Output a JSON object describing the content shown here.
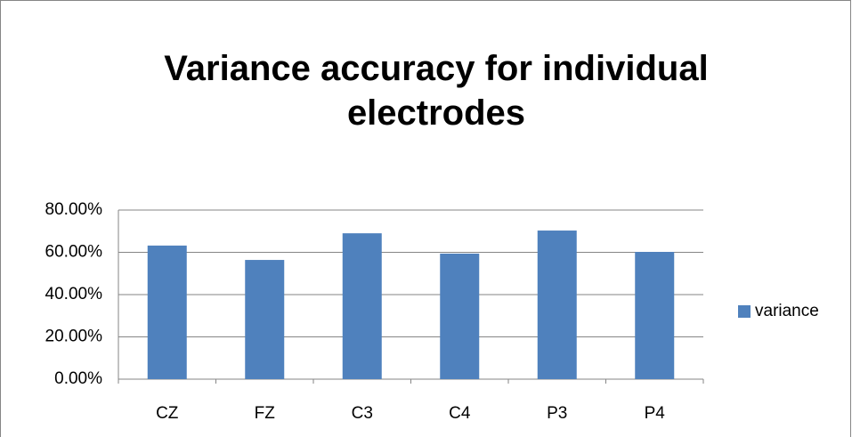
{
  "chart_data": {
    "type": "bar",
    "title": "Variance accuracy for individual electrodes",
    "categories": [
      "CZ",
      "FZ",
      "C3",
      "C4",
      "P3",
      "P4"
    ],
    "series": [
      {
        "name": "variance",
        "color": "#4f81bd",
        "values": [
          63.2,
          56.4,
          69.0,
          59.4,
          70.3,
          60.2
        ]
      }
    ],
    "ylim": [
      0,
      80
    ],
    "yticks": [
      {
        "value": 0,
        "label": "0.00%"
      },
      {
        "value": 20,
        "label": "20.00%"
      },
      {
        "value": 40,
        "label": "40.00%"
      },
      {
        "value": 60,
        "label": "60.00%"
      },
      {
        "value": 80,
        "label": "80.00%"
      }
    ],
    "grid": true,
    "legend": "right"
  }
}
